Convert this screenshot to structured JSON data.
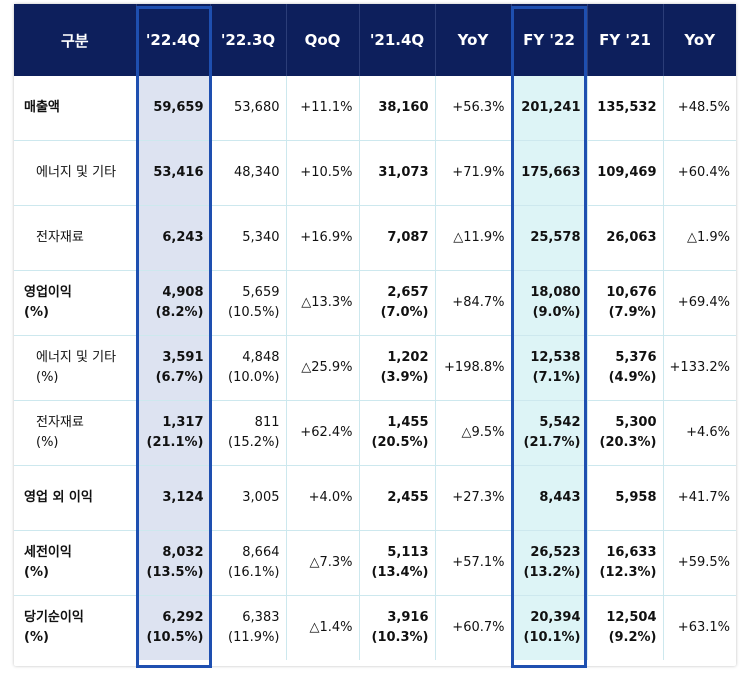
{
  "header": [
    "구분",
    "'22.4Q",
    "'22.3Q",
    "QoQ",
    "'21.4Q",
    "YoY",
    "FY '22",
    "FY '21",
    "YoY"
  ],
  "rows": [
    {
      "label": [
        "매출액"
      ],
      "sub": false,
      "major": true,
      "cells": [
        [
          "59,659"
        ],
        [
          "53,680"
        ],
        [
          "+11.1%"
        ],
        [
          "38,160"
        ],
        [
          "+56.3%"
        ],
        [
          "201,241"
        ],
        [
          "135,532"
        ],
        [
          "+48.5%"
        ]
      ]
    },
    {
      "label": [
        "에너지 및 기타"
      ],
      "sub": true,
      "major": false,
      "cells": [
        [
          "53,416"
        ],
        [
          "48,340"
        ],
        [
          "+10.5%"
        ],
        [
          "31,073"
        ],
        [
          "+71.9%"
        ],
        [
          "175,663"
        ],
        [
          "109,469"
        ],
        [
          "+60.4%"
        ]
      ]
    },
    {
      "label": [
        "전자재료"
      ],
      "sub": true,
      "major": false,
      "cells": [
        [
          "6,243"
        ],
        [
          "5,340"
        ],
        [
          "+16.9%"
        ],
        [
          "7,087"
        ],
        [
          "△11.9%"
        ],
        [
          "25,578"
        ],
        [
          "26,063"
        ],
        [
          "△1.9%"
        ]
      ]
    },
    {
      "label": [
        "영업이익",
        "(%)"
      ],
      "sub": false,
      "major": true,
      "cells": [
        [
          "4,908",
          "(8.2%)"
        ],
        [
          "5,659",
          "(10.5%)"
        ],
        [
          "△13.3%"
        ],
        [
          "2,657",
          "(7.0%)"
        ],
        [
          "+84.7%"
        ],
        [
          "18,080",
          "(9.0%)"
        ],
        [
          "10,676",
          "(7.9%)"
        ],
        [
          "+69.4%"
        ]
      ]
    },
    {
      "label": [
        "에너지 및 기타",
        "(%)"
      ],
      "sub": true,
      "major": false,
      "cells": [
        [
          "3,591",
          "(6.7%)"
        ],
        [
          "4,848",
          "(10.0%)"
        ],
        [
          "△25.9%"
        ],
        [
          "1,202",
          "(3.9%)"
        ],
        [
          "+198.8%"
        ],
        [
          "12,538",
          "(7.1%)"
        ],
        [
          "5,376",
          "(4.9%)"
        ],
        [
          "+133.2%"
        ]
      ]
    },
    {
      "label": [
        "전자재료",
        "(%)"
      ],
      "sub": true,
      "major": false,
      "cells": [
        [
          "1,317",
          "(21.1%)"
        ],
        [
          "811",
          "(15.2%)"
        ],
        [
          "+62.4%"
        ],
        [
          "1,455",
          "(20.5%)"
        ],
        [
          "△9.5%"
        ],
        [
          "5,542",
          "(21.7%)"
        ],
        [
          "5,300",
          "(20.3%)"
        ],
        [
          "+4.6%"
        ]
      ]
    },
    {
      "label": [
        "영업 외 이익"
      ],
      "sub": false,
      "major": true,
      "cells": [
        [
          "3,124"
        ],
        [
          "3,005"
        ],
        [
          "+4.0%"
        ],
        [
          "2,455"
        ],
        [
          "+27.3%"
        ],
        [
          "8,443"
        ],
        [
          "5,958"
        ],
        [
          "+41.7%"
        ]
      ]
    },
    {
      "label": [
        "세전이익",
        "(%)"
      ],
      "sub": false,
      "major": true,
      "cells": [
        [
          "8,032",
          "(13.5%)"
        ],
        [
          "8,664",
          "(16.1%)"
        ],
        [
          "△7.3%"
        ],
        [
          "5,113",
          "(13.4%)"
        ],
        [
          "+57.1%"
        ],
        [
          "26,523",
          "(13.2%)"
        ],
        [
          "16,633",
          "(12.3%)"
        ],
        [
          "+59.5%"
        ]
      ]
    },
    {
      "label": [
        "당기순이익",
        "(%)"
      ],
      "sub": false,
      "major": true,
      "cells": [
        [
          "6,292",
          "(10.5%)"
        ],
        [
          "6,383",
          "(11.9%)"
        ],
        [
          "△1.4%"
        ],
        [
          "3,916",
          "(10.3%)"
        ],
        [
          "+60.7%"
        ],
        [
          "20,394",
          "(10.1%)"
        ],
        [
          "12,504",
          "(9.2%)"
        ],
        [
          "+63.1%"
        ]
      ]
    }
  ],
  "colors": {
    "header_bg": "#0d1f5c",
    "highlight_q4": "#dde3f1",
    "highlight_fy": "#ddf4f6",
    "frame": "#1e4fb0"
  }
}
